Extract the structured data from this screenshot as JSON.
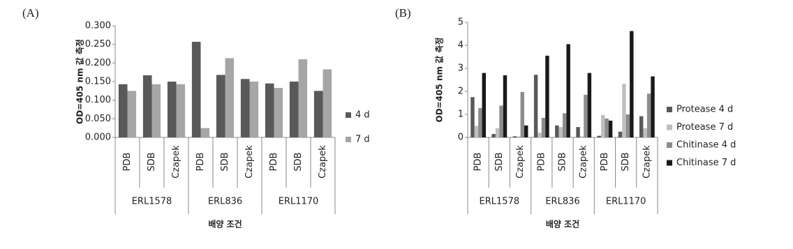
{
  "chart_data": [
    {
      "type": "bar",
      "panel_label": "(A)",
      "y_label": "OD=405 nm 값 측정",
      "x_label": "배양 조건",
      "categories": [
        "PDB",
        "SDB",
        "Czapek",
        "PDB",
        "SDB",
        "Czapek",
        "PDB",
        "SDB",
        "Czapek"
      ],
      "groups": [
        "ERL1578",
        "ERL836",
        "ERL1170"
      ],
      "series": [
        {
          "name": "4 d",
          "color": "#595959",
          "values": [
            0.143,
            0.167,
            0.15,
            0.257,
            0.168,
            0.157,
            0.145,
            0.15,
            0.125
          ]
        },
        {
          "name": "7 d",
          "color": "#a6a6a6",
          "values": [
            0.125,
            0.143,
            0.143,
            0.025,
            0.213,
            0.15,
            0.133,
            0.21,
            0.183
          ]
        }
      ],
      "ylim": [
        0,
        0.3
      ],
      "yticks": [
        {
          "value": 0,
          "label": "0.000"
        },
        {
          "value": 0.05,
          "label": "0.050"
        },
        {
          "value": 0.1,
          "label": "0.100"
        },
        {
          "value": 0.15,
          "label": "0.150"
        },
        {
          "value": 0.2,
          "label": "0.200"
        },
        {
          "value": 0.25,
          "label": "0.250"
        },
        {
          "value": 0.3,
          "label": "0.300"
        }
      ],
      "grid": false,
      "legend": "right"
    },
    {
      "type": "bar",
      "panel_label": "(B)",
      "y_label": "OD=405 nm 값 측정",
      "x_label": "배양 조건",
      "categories": [
        "PDB",
        "SDB",
        "Czapek",
        "PDB",
        "SDB",
        "Czapek",
        "PDB",
        "SDB",
        "Czapek"
      ],
      "groups": [
        "ERL1578",
        "ERL836",
        "ERL1170"
      ],
      "series": [
        {
          "name": "Protease 4 d",
          "color": "#595959",
          "values": [
            1.75,
            0.15,
            0.05,
            2.72,
            0.52,
            0.45,
            0.07,
            0.25,
            0.92
          ]
        },
        {
          "name": "Protease 7 d",
          "color": "#bfbfbf",
          "values": [
            0.5,
            0.4,
            0.05,
            0.2,
            0.45,
            0.05,
            0.97,
            2.33,
            0.4
          ]
        },
        {
          "name": "Chitinase 4 d",
          "color": "#8c8c8c",
          "values": [
            1.27,
            1.38,
            1.97,
            0.85,
            1.05,
            1.85,
            0.82,
            1.0,
            1.9
          ]
        },
        {
          "name": "Chitinase 7 d",
          "color": "#1a1a1a",
          "values": [
            2.8,
            2.7,
            0.52,
            3.55,
            4.05,
            2.8,
            0.73,
            4.62,
            2.65
          ]
        }
      ],
      "ylim": [
        0,
        5
      ],
      "yticks": [
        0,
        1,
        2,
        3,
        4,
        5
      ],
      "grid": false,
      "legend": "right"
    }
  ]
}
